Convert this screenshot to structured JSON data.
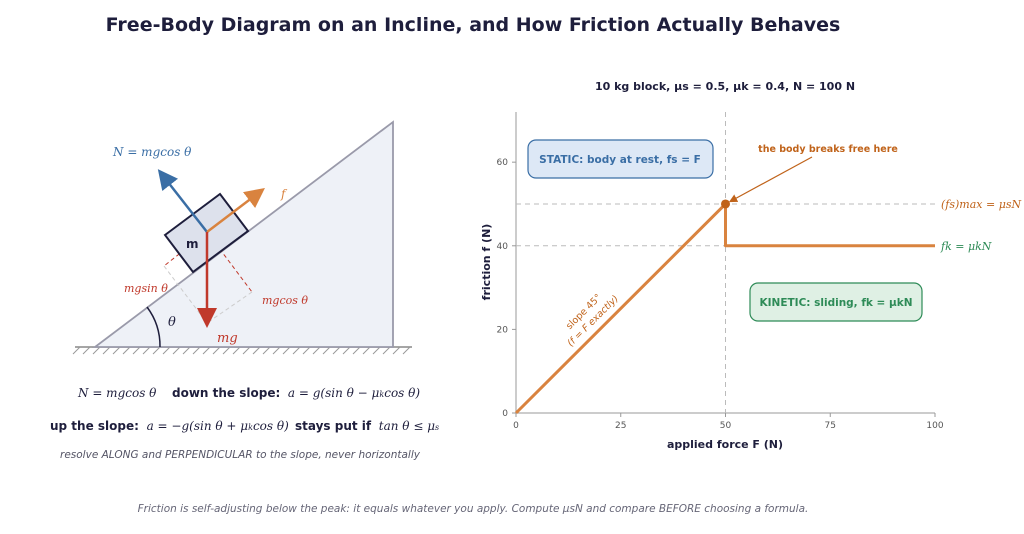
{
  "title": "Free-Body Diagram on an Incline, and How Friction Actually Behaves",
  "diagram": {
    "block_label": "m",
    "normal_label": "N = mgcos θ",
    "friction_label": "f",
    "weight_label": "mg",
    "sin_comp_label": "mgsin θ",
    "cos_comp_label": "mgcos θ",
    "angle_label": "θ"
  },
  "equations": {
    "normal": "N = mgcos θ",
    "down_label": "down the slope:",
    "down_formula": "a = g(sin θ − μ",
    "up_label": "up the slope:",
    "up_formula": "a = −g(sin θ + μ",
    "stays_label": "stays put if",
    "stays_formula": "tan θ ≤ μ",
    "note": "resolve ALONG and PERPENDICULAR to the slope, never horizontally"
  },
  "footer": "Friction is self-adjusting below the peak: it equals whatever you apply. Compute μsN and compare BEFORE choosing a formula.",
  "colors": {
    "navy": "#1e1e3c",
    "blue": "#3a6ea5",
    "orange": "#d9833f",
    "red": "#c0392b",
    "green": "#2e8b57"
  },
  "chart_data": {
    "type": "line",
    "title": "10 kg block,  μs = 0.5,  μk = 0.4,  N = 100 N",
    "xlabel": "applied force  F  (N)",
    "ylabel": "friction  f  (N)",
    "xlim": [
      0,
      100
    ],
    "ylim": [
      0,
      72
    ],
    "xticks": [
      0,
      25,
      50,
      75,
      100
    ],
    "yticks": [
      0,
      20,
      40,
      60
    ],
    "series": [
      {
        "name": "friction",
        "x": [
          0,
          50,
          50,
          100
        ],
        "y": [
          0,
          50,
          40,
          40
        ]
      }
    ],
    "peak_point": {
      "x": 50,
      "y": 50
    },
    "reference_lines": [
      {
        "orientation": "horizontal",
        "value": 50,
        "label": "(fs)max = μsN"
      },
      {
        "orientation": "horizontal",
        "value": 40,
        "label": "fk = μkN"
      },
      {
        "orientation": "vertical",
        "value": 50
      }
    ],
    "annotations": {
      "static_box": "STATIC:  body at rest,  fs = F",
      "kinetic_box": "KINETIC:  sliding,  fk = μkN",
      "breaks_free": "the body breaks free here",
      "slope_line1": "slope 45°",
      "slope_line2": "(f = F exactly)"
    },
    "grid": false
  }
}
